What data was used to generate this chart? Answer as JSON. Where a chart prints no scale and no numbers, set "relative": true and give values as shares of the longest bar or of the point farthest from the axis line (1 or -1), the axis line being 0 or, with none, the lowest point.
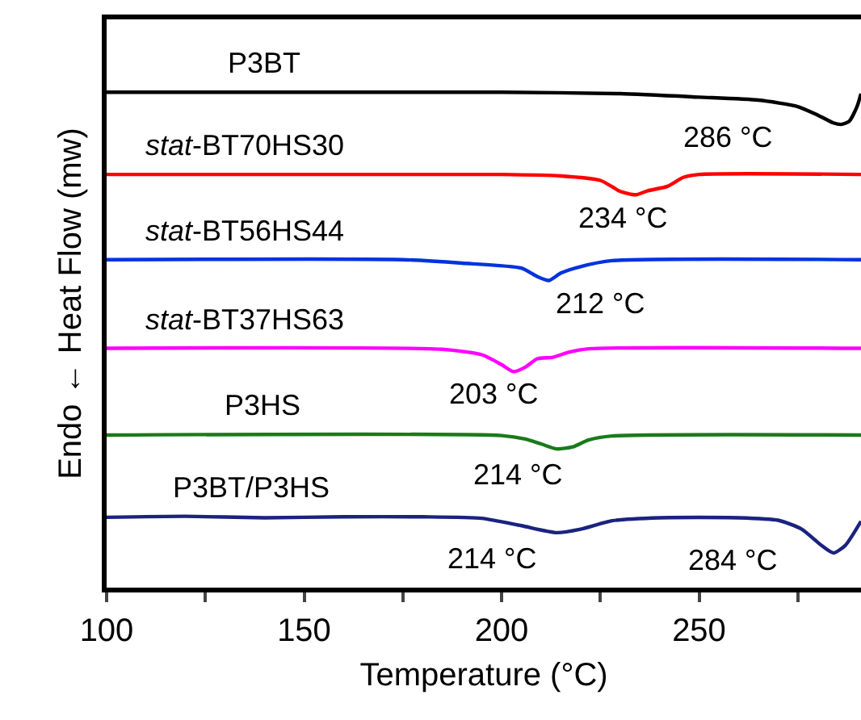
{
  "chart_data": {
    "type": "line",
    "relative": true,
    "xlabel": "Temperature (°C)",
    "ylabel": "Endo ← Heat Flow (mw)",
    "xlim": [
      100,
      291
    ],
    "xticks": [
      100,
      {
        "value": 125,
        "label": null
      },
      150,
      {
        "value": 175,
        "label": null
      },
      200,
      {
        "value": 225,
        "label": null
      },
      250,
      {
        "value": 275,
        "label": null
      }
    ],
    "legend": false,
    "line_style": "solid",
    "marker": "none",
    "series": [
      {
        "name": "P3BT",
        "color": "#000000",
        "x": [
          100,
          200,
          230,
          250,
          265,
          275,
          280,
          284,
          286,
          288,
          290,
          291
        ],
        "values": [
          1.0,
          1.0,
          0.997,
          0.99,
          0.984,
          0.971,
          0.954,
          0.938,
          0.935,
          0.941,
          0.971,
          0.997
        ]
      },
      {
        "name": "stat-BT70HS30",
        "color": "#ff0000",
        "x": [
          100,
          200,
          215,
          225,
          230,
          234,
          237,
          242,
          246,
          250,
          291
        ],
        "values": [
          0.834,
          0.834,
          0.831,
          0.822,
          0.8,
          0.793,
          0.801,
          0.81,
          0.828,
          0.834,
          0.834
        ]
      },
      {
        "name": "stat-BT56HS44",
        "color": "#0033dd",
        "x": [
          100,
          175,
          190,
          205,
          209,
          212,
          215,
          220,
          228,
          291
        ],
        "values": [
          0.662,
          0.662,
          0.655,
          0.645,
          0.628,
          0.62,
          0.635,
          0.648,
          0.66,
          0.662
        ]
      },
      {
        "name": "stat-BT37HS63",
        "color": "#ff00ff",
        "x": [
          100,
          185,
          195,
          200,
          203,
          206,
          209,
          213,
          217,
          222,
          291
        ],
        "values": [
          0.483,
          0.481,
          0.47,
          0.45,
          0.436,
          0.445,
          0.462,
          0.465,
          0.475,
          0.482,
          0.483
        ]
      },
      {
        "name": "P3HS",
        "color": "#1a7a1a",
        "x": [
          100,
          200,
          206,
          210,
          214,
          218,
          222,
          228,
          291
        ],
        "values": [
          0.308,
          0.307,
          0.3,
          0.29,
          0.28,
          0.284,
          0.298,
          0.306,
          0.308
        ]
      },
      {
        "name": "P3BT/P3HS",
        "color": "#1a237e",
        "x": [
          100,
          120,
          140,
          160,
          180,
          195,
          205,
          214,
          220,
          228,
          240,
          260,
          270,
          276,
          281,
          284,
          287,
          291
        ],
        "values": [
          0.142,
          0.144,
          0.141,
          0.143,
          0.143,
          0.14,
          0.125,
          0.111,
          0.118,
          0.135,
          0.141,
          0.141,
          0.136,
          0.118,
          0.085,
          0.07,
          0.085,
          0.134
        ]
      }
    ],
    "annotations": [
      {
        "text": "286 °C",
        "x": 286,
        "y": 0.935
      },
      {
        "text": "234 °C",
        "x": 234,
        "y": 0.793
      },
      {
        "text": "212 °C",
        "x": 212,
        "y": 0.62
      },
      {
        "text": "203 °C",
        "x": 203,
        "y": 0.436
      },
      {
        "text": "214 °C",
        "x": 214,
        "y": 0.28
      },
      {
        "text": "214 °C",
        "x": 214,
        "y": 0.111
      },
      {
        "text": "284 °C",
        "x": 284,
        "y": 0.07
      }
    ]
  }
}
